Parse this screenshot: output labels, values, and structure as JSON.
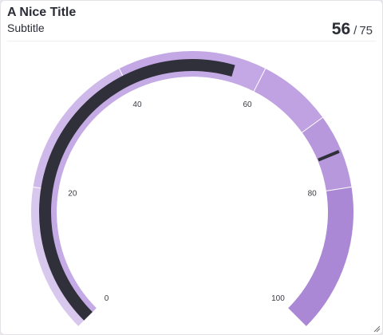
{
  "header": {
    "title": "A Nice Title",
    "subtitle": "Subtitle",
    "value": "56",
    "separator": "/",
    "max": "75"
  },
  "chart_data": {
    "type": "gauge",
    "title": "A Nice Title",
    "subtitle": "Subtitle",
    "scale": [
      0,
      100
    ],
    "ticks": [
      {
        "value": 0,
        "label": "0"
      },
      {
        "value": 20,
        "label": "20"
      },
      {
        "value": 40,
        "label": "40"
      },
      {
        "value": 60,
        "label": "60"
      },
      {
        "value": 80,
        "label": "80"
      },
      {
        "value": 100,
        "label": "100"
      }
    ],
    "value": 56,
    "target": 75,
    "target_label": "75",
    "bands": [
      {
        "from": 0,
        "to": 20,
        "color": "#d9c8ee"
      },
      {
        "from": 20,
        "to": 40,
        "color": "#cfb8ea"
      },
      {
        "from": 40,
        "to": 60,
        "color": "#c4a8e5"
      },
      {
        "from": 60,
        "to": 70,
        "color": "#c0a2e3"
      },
      {
        "from": 70,
        "to": 80,
        "color": "#b898dc"
      },
      {
        "from": 80,
        "to": 100,
        "color": "#ab88d5"
      }
    ],
    "inner_band_color": "#c5abe6",
    "bar_color": "#2f3039",
    "target_color": "#2f3039"
  }
}
